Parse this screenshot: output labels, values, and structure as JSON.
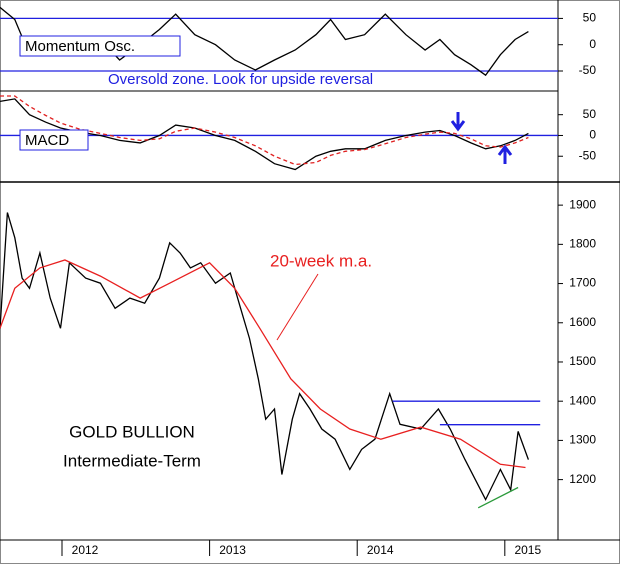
{
  "chart_data": [
    {
      "type": "line",
      "label": "Momentum Osc.",
      "note": "Oversold zone. Look for upside reversal",
      "xlim": [
        2011.58,
        2015.34
      ],
      "ylim": [
        -88,
        85
      ],
      "yticks": [
        -50,
        0,
        50
      ],
      "reference_lines": [
        -50,
        50
      ],
      "series": [
        {
          "color": "#000000",
          "x": [
            2011.58,
            2011.68,
            2011.78,
            2011.89,
            2011.99,
            2012.12,
            2012.26,
            2012.39,
            2012.53,
            2012.66,
            2012.77,
            2012.9,
            2013.04,
            2013.17,
            2013.31,
            2013.44,
            2013.58,
            2013.72,
            2013.82,
            2013.92,
            2014.05,
            2014.19,
            2014.33,
            2014.46,
            2014.56,
            2014.66,
            2014.77,
            2014.87,
            2014.97,
            2015.07,
            2015.16
          ],
          "values": [
            71,
            48,
            -19,
            10,
            -10,
            -19,
            10,
            -29,
            0,
            29,
            58,
            19,
            0,
            -29,
            -48,
            -29,
            -10,
            19,
            48,
            10,
            19,
            58,
            19,
            -10,
            10,
            -19,
            -38,
            -58,
            -19,
            10,
            25
          ]
        }
      ]
    },
    {
      "type": "line",
      "label": "MACD",
      "xlim": [
        2011.58,
        2015.34
      ],
      "ylim": [
        -112,
        107
      ],
      "yticks": [
        -50,
        0,
        50
      ],
      "reference_lines": [
        0
      ],
      "series": [
        {
          "color": "#000000",
          "x": [
            2011.58,
            2011.68,
            2011.78,
            2011.89,
            2011.99,
            2012.12,
            2012.26,
            2012.39,
            2012.53,
            2012.66,
            2012.77,
            2012.9,
            2013.04,
            2013.17,
            2013.31,
            2013.44,
            2013.58,
            2013.72,
            2013.82,
            2013.92,
            2014.05,
            2014.19,
            2014.33,
            2014.46,
            2014.56,
            2014.66,
            2014.77,
            2014.87,
            2014.97,
            2015.07,
            2015.16
          ],
          "values": [
            82,
            88,
            50,
            32,
            18,
            8,
            0,
            -12,
            -18,
            0,
            25,
            18,
            0,
            -12,
            -38,
            -68,
            -82,
            -50,
            -38,
            -32,
            -32,
            -12,
            0,
            8,
            12,
            0,
            -18,
            -32,
            -25,
            -12,
            5
          ]
        },
        {
          "color": "#e02020",
          "dash": true,
          "x": [
            2011.58,
            2011.68,
            2011.78,
            2011.89,
            2011.99,
            2012.12,
            2012.26,
            2012.39,
            2012.53,
            2012.66,
            2012.77,
            2012.9,
            2013.04,
            2013.17,
            2013.31,
            2013.44,
            2013.58,
            2013.72,
            2013.82,
            2013.92,
            2014.05,
            2014.19,
            2014.33,
            2014.46,
            2014.56,
            2014.66,
            2014.77,
            2014.87,
            2014.97,
            2015.07,
            2015.16
          ],
          "values": [
            95,
            95,
            70,
            48,
            30,
            15,
            5,
            -5,
            -12,
            -8,
            10,
            18,
            8,
            -5,
            -25,
            -50,
            -70,
            -65,
            -48,
            -38,
            -34,
            -20,
            -5,
            3,
            8,
            5,
            -8,
            -25,
            -28,
            -18,
            -5
          ]
        }
      ]
    },
    {
      "type": "line",
      "annotation": "20-week m.a.",
      "title_lines": [
        "GOLD BULLION",
        "Intermediate-Term"
      ],
      "xlim": [
        2011.58,
        2015.34
      ],
      "xticks": [
        2012,
        2013,
        2014,
        2015
      ],
      "ylim": [
        1046,
        1959
      ],
      "yticks": [
        1200,
        1300,
        1400,
        1500,
        1600,
        1700,
        1800,
        1900
      ],
      "series": [
        {
          "color": "#000000",
          "x": [
            2011.58,
            2011.63,
            2011.68,
            2011.73,
            2011.78,
            2011.85,
            2011.92,
            2011.99,
            2012.05,
            2012.16,
            2012.26,
            2012.36,
            2012.46,
            2012.56,
            2012.66,
            2012.73,
            2012.8,
            2012.87,
            2012.94,
            2013.04,
            2013.14,
            2013.21,
            2013.27,
            2013.33,
            2013.38,
            2013.44,
            2013.49,
            2013.56,
            2013.61,
            2013.68,
            2013.76,
            2013.85,
            2013.95,
            2014.03,
            2014.12,
            2014.22,
            2014.29,
            2014.43,
            2014.55,
            2014.63,
            2014.73,
            2014.87,
            2014.97,
            2015.04,
            2015.09,
            2015.16
          ],
          "values": [
            1586,
            1881,
            1817,
            1714,
            1688,
            1778,
            1663,
            1586,
            1753,
            1714,
            1701,
            1637,
            1663,
            1650,
            1714,
            1804,
            1778,
            1740,
            1753,
            1701,
            1727,
            1637,
            1560,
            1457,
            1354,
            1380,
            1213,
            1354,
            1419,
            1380,
            1329,
            1303,
            1226,
            1277,
            1303,
            1419,
            1341,
            1329,
            1380,
            1329,
            1251,
            1149,
            1226,
            1174,
            1323,
            1251
          ]
        },
        {
          "color": "#e82020",
          "x": [
            2011.58,
            2011.68,
            2011.85,
            2012.02,
            2012.26,
            2012.53,
            2012.73,
            2013.0,
            2013.17,
            2013.34,
            2013.55,
            2013.75,
            2013.95,
            2014.16,
            2014.43,
            2014.7,
            2014.97,
            2015.14
          ],
          "values": [
            1586,
            1688,
            1740,
            1760,
            1719,
            1663,
            1701,
            1753,
            1688,
            1586,
            1457,
            1380,
            1329,
            1303,
            1334,
            1303,
            1239,
            1231
          ]
        },
        {
          "color": "#2020e0",
          "x": [
            2014.24,
            2015.24
          ],
          "values": [
            1400,
            1400
          ]
        },
        {
          "color": "#2020e0",
          "x": [
            2014.56,
            2015.24
          ],
          "values": [
            1340,
            1340
          ]
        },
        {
          "color": "#2a9a3a",
          "x": [
            2014.82,
            2015.09
          ],
          "values": [
            1128,
            1180
          ]
        }
      ]
    }
  ]
}
